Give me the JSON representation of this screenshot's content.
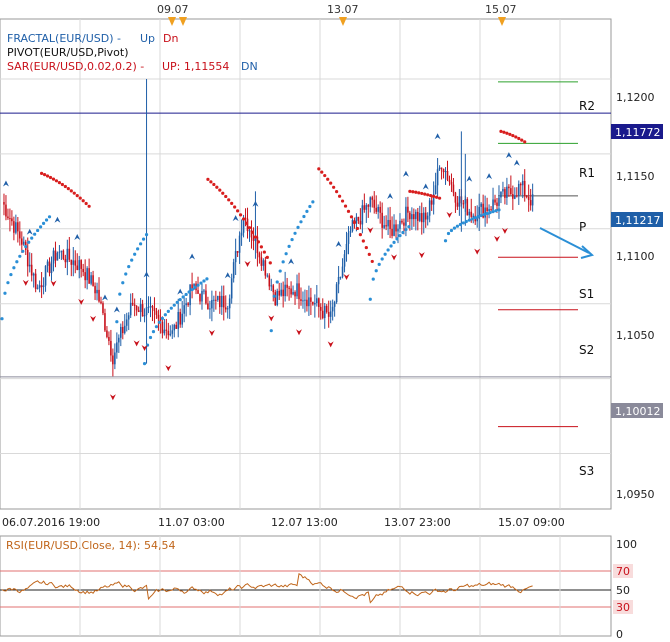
{
  "colors": {
    "bull": "#1f5fa8",
    "bear": "#c8101a",
    "sar_up": "#2b8fd6",
    "sar_dn": "#d81e1e",
    "pivot_r": "#2ca02c",
    "pivot_s": "#c8101a",
    "pivot_p": "#555555",
    "level_high": "#1a1a8c",
    "level_low": "#8a8a9a",
    "rsi": "#c0651a",
    "grid": "#d9d9d9",
    "event_marker": "#f0a020",
    "arrow": "#2b8fd6"
  },
  "top_dates": [
    "09.07",
    "13.07",
    "15.07"
  ],
  "legend": {
    "fractal_prefix": "FRACTAL(EUR/USD) -",
    "fractal_up": "Up",
    "fractal_dn": "Dn",
    "pivot": "PIVOT(EUR/USD,Pivot)",
    "sar_prefix": "SAR(EUR/USD,0.02,0.2) -",
    "sar_up": "UP: 1,11554",
    "sar_dn": "DN"
  },
  "price_axis": {
    "ticks": [
      "1,1200",
      "1,1150",
      "1,1100",
      "1,1050",
      "1,1000",
      "1,0950"
    ],
    "tag_high": "1,11772",
    "tag_mid": "1,11217",
    "tag_low": "1,10012"
  },
  "pivot_labels": {
    "r2": "R2",
    "r1": "R1",
    "p": "P",
    "s1": "S1",
    "s2": "S2",
    "s3": "S3"
  },
  "time_axis": [
    "06.07.2016 19:00",
    "11.07 03:00",
    "12.07 13:00",
    "13.07 23:00",
    "15.07 09:00"
  ],
  "rsi_panel": {
    "title": "RSI(EUR/USD.Close, 14): 54,54",
    "ticks": [
      "100",
      "70",
      "50",
      "30",
      "0"
    ]
  },
  "chart_data": {
    "type": "candlestick",
    "instrument": "EUR/USD",
    "ylim": [
      1.0913,
      1.124
    ],
    "levels": {
      "R2": 1.1198,
      "R1": 1.1157,
      "P": 1.1122,
      "S1": 1.1081,
      "S2": 1.1046,
      "S3": 1.0968,
      "level_1": 1.11772,
      "level_2": 1.10012
    },
    "last_close": 1.11217,
    "sar_up_value": 1.11554,
    "rsi_value": 54.54,
    "rsi_levels": [
      30,
      50,
      70
    ],
    "rsi_ylim": [
      0,
      100
    ]
  }
}
